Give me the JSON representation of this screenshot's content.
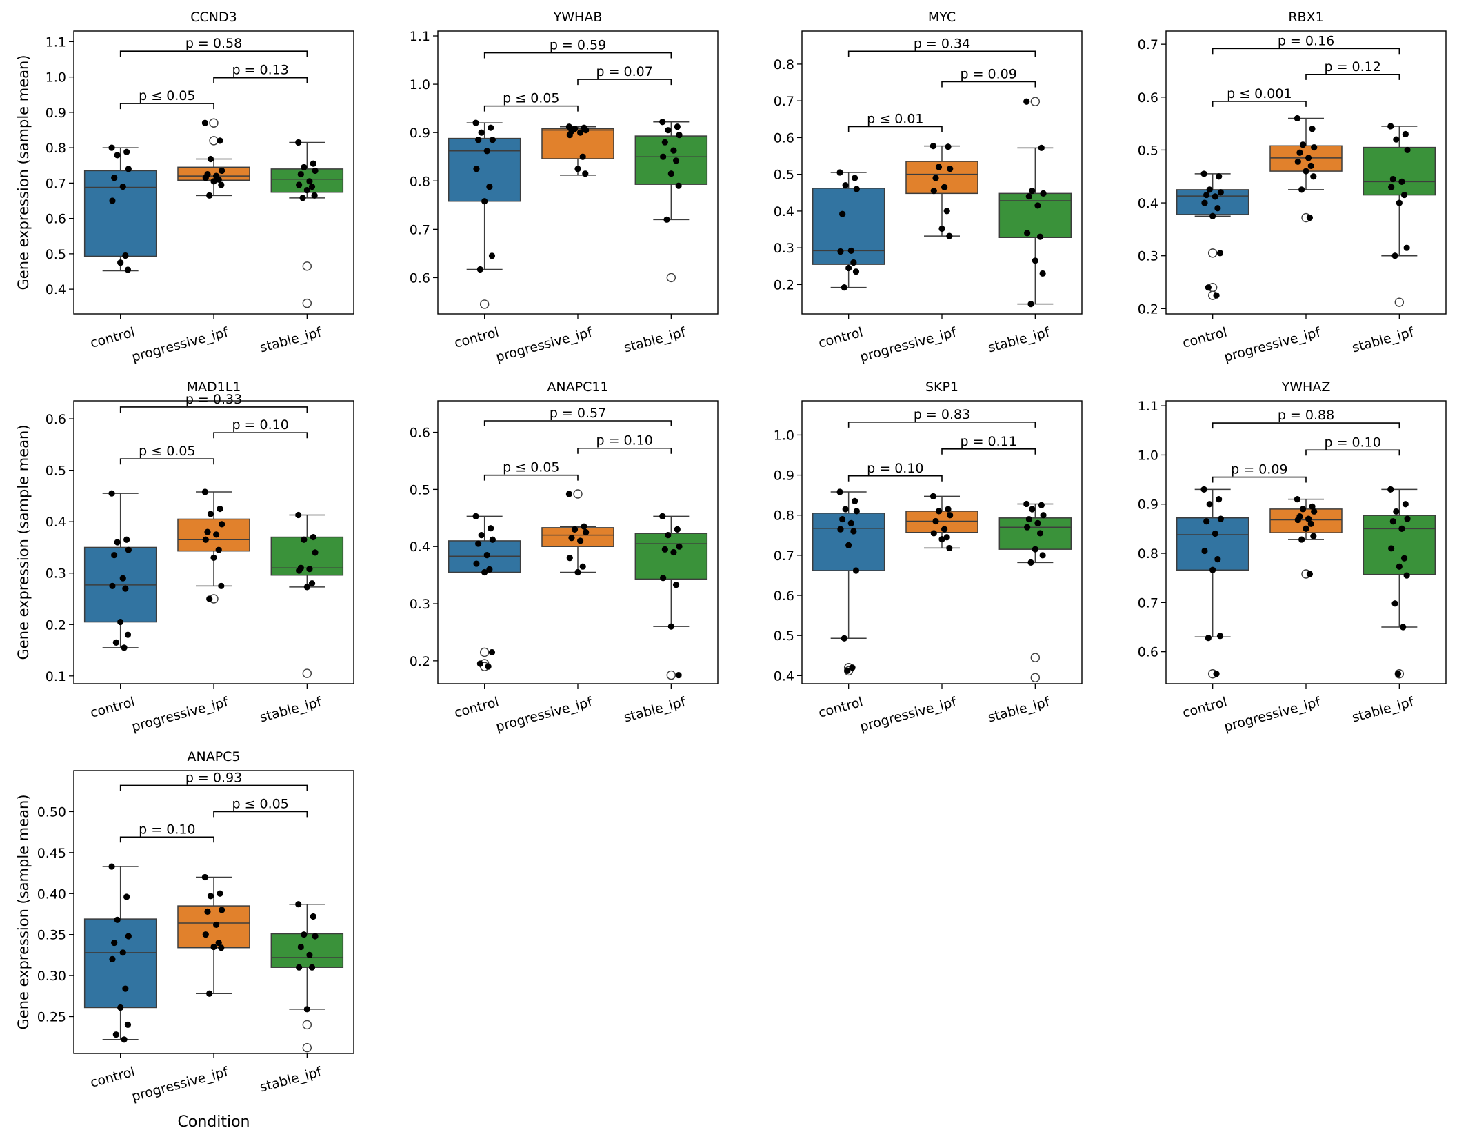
{
  "figure": {
    "ylabel": "Gene expression (sample mean)",
    "xlabel": "Condition",
    "categories": [
      "control",
      "progressive_ipf",
      "stable_ipf"
    ],
    "colors": [
      "#3274a1",
      "#e1812c",
      "#3a923a"
    ]
  },
  "chart_data": [
    {
      "type": "box",
      "title": "CCND3",
      "ylim": [
        0.33,
        1.13
      ],
      "yticks": [
        "0.4",
        "0.5",
        "0.6",
        "0.7",
        "0.8",
        "0.9",
        "1.0",
        "1.1"
      ],
      "boxes": [
        {
          "whislo": 0.452,
          "q1": 0.493,
          "med": 0.688,
          "q3": 0.735,
          "whishi": 0.8
        },
        {
          "whislo": 0.665,
          "q1": 0.708,
          "med": 0.72,
          "q3": 0.745,
          "whishi": 0.768
        },
        {
          "whislo": 0.658,
          "q1": 0.674,
          "med": 0.711,
          "q3": 0.74,
          "whishi": 0.815
        }
      ],
      "points": [
        [
          0.8,
          0.788,
          0.779,
          0.74,
          0.715,
          0.69,
          0.65,
          0.495,
          0.475,
          0.455
        ],
        [
          0.87,
          0.82,
          0.768,
          0.735,
          0.725,
          0.72,
          0.715,
          0.71,
          0.705,
          0.695,
          0.665
        ],
        [
          0.815,
          0.755,
          0.745,
          0.735,
          0.725,
          0.705,
          0.695,
          0.69,
          0.68,
          0.665,
          0.658
        ]
      ],
      "outliers": [
        [],
        [
          0.87,
          0.82
        ],
        [
          0.465,
          0.36
        ]
      ],
      "annotations": [
        {
          "from": 0,
          "to": 1,
          "y": 0.925,
          "label": "p ≤ 0.05"
        },
        {
          "from": 1,
          "to": 2,
          "y": 0.998,
          "label": "p = 0.13"
        },
        {
          "from": 0,
          "to": 2,
          "y": 1.073,
          "label": "p = 0.58"
        }
      ]
    },
    {
      "type": "box",
      "title": "YWHAB",
      "ylim": [
        0.525,
        1.11
      ],
      "yticks": [
        "0.6",
        "0.7",
        "0.8",
        "0.9",
        "1.0",
        "1.1"
      ],
      "boxes": [
        {
          "whislo": 0.617,
          "q1": 0.758,
          "med": 0.862,
          "q3": 0.888,
          "whishi": 0.92
        },
        {
          "whislo": 0.812,
          "q1": 0.846,
          "med": 0.905,
          "q3": 0.908,
          "whishi": 0.912
        },
        {
          "whislo": 0.72,
          "q1": 0.793,
          "med": 0.85,
          "q3": 0.893,
          "whishi": 0.922
        }
      ],
      "points": [
        [
          0.92,
          0.91,
          0.9,
          0.885,
          0.885,
          0.862,
          0.825,
          0.788,
          0.758,
          0.645,
          0.617
        ],
        [
          0.912,
          0.91,
          0.908,
          0.905,
          0.903,
          0.9,
          0.895,
          0.85,
          0.825,
          0.815
        ],
        [
          0.922,
          0.912,
          0.905,
          0.895,
          0.88,
          0.863,
          0.85,
          0.842,
          0.815,
          0.79,
          0.72
        ]
      ],
      "outliers": [
        [
          0.545
        ],
        [],
        [
          0.6
        ]
      ],
      "annotations": [
        {
          "from": 0,
          "to": 1,
          "y": 0.955,
          "label": "p ≤ 0.05"
        },
        {
          "from": 1,
          "to": 2,
          "y": 1.01,
          "label": "p = 0.07"
        },
        {
          "from": 0,
          "to": 2,
          "y": 1.065,
          "label": "p = 0.59"
        }
      ]
    },
    {
      "type": "box",
      "title": "MYC",
      "ylim": [
        0.12,
        0.89
      ],
      "yticks": [
        "0.2",
        "0.3",
        "0.4",
        "0.5",
        "0.6",
        "0.7",
        "0.8"
      ],
      "boxes": [
        {
          "whislo": 0.192,
          "q1": 0.255,
          "med": 0.292,
          "q3": 0.462,
          "whishi": 0.505
        },
        {
          "whislo": 0.332,
          "q1": 0.448,
          "med": 0.5,
          "q3": 0.535,
          "whishi": 0.577
        },
        {
          "whislo": 0.147,
          "q1": 0.328,
          "med": 0.428,
          "q3": 0.448,
          "whishi": 0.572
        }
      ],
      "points": [
        [
          0.505,
          0.49,
          0.47,
          0.46,
          0.392,
          0.292,
          0.29,
          0.26,
          0.245,
          0.235,
          0.192
        ],
        [
          0.577,
          0.575,
          0.52,
          0.515,
          0.49,
          0.465,
          0.455,
          0.4,
          0.352,
          0.332
        ],
        [
          0.698,
          0.572,
          0.455,
          0.448,
          0.44,
          0.415,
          0.34,
          0.33,
          0.265,
          0.23,
          0.147
        ]
      ],
      "outliers": [
        [],
        [],
        [
          0.698
        ]
      ],
      "annotations": [
        {
          "from": 0,
          "to": 1,
          "y": 0.63,
          "label": "p ≤ 0.01"
        },
        {
          "from": 1,
          "to": 2,
          "y": 0.752,
          "label": "p = 0.09"
        },
        {
          "from": 0,
          "to": 2,
          "y": 0.835,
          "label": "p = 0.34"
        }
      ]
    },
    {
      "type": "box",
      "title": "RBX1",
      "ylim": [
        0.19,
        0.725
      ],
      "yticks": [
        "0.2",
        "0.3",
        "0.4",
        "0.5",
        "0.6",
        "0.7"
      ],
      "boxes": [
        {
          "whislo": 0.375,
          "q1": 0.378,
          "med": 0.413,
          "q3": 0.425,
          "whishi": 0.455
        },
        {
          "whislo": 0.425,
          "q1": 0.46,
          "med": 0.485,
          "q3": 0.508,
          "whishi": 0.56
        },
        {
          "whislo": 0.3,
          "q1": 0.415,
          "med": 0.44,
          "q3": 0.505,
          "whishi": 0.545
        }
      ],
      "points": [
        [
          0.455,
          0.45,
          0.425,
          0.42,
          0.415,
          0.412,
          0.4,
          0.39,
          0.375,
          0.305,
          0.24,
          0.225
        ],
        [
          0.56,
          0.54,
          0.51,
          0.505,
          0.495,
          0.485,
          0.478,
          0.47,
          0.46,
          0.45,
          0.425,
          0.372
        ],
        [
          0.545,
          0.53,
          0.52,
          0.5,
          0.445,
          0.44,
          0.43,
          0.415,
          0.4,
          0.315,
          0.3
        ]
      ],
      "outliers": [
        [
          0.305,
          0.24,
          0.225
        ],
        [
          0.372
        ],
        [
          0.212
        ]
      ],
      "annotations": [
        {
          "from": 0,
          "to": 1,
          "y": 0.592,
          "label": "p ≤ 0.001"
        },
        {
          "from": 1,
          "to": 2,
          "y": 0.643,
          "label": "p = 0.12"
        },
        {
          "from": 0,
          "to": 2,
          "y": 0.692,
          "label": "p = 0.16"
        }
      ]
    },
    {
      "type": "box",
      "title": "MAD1L1",
      "ylim": [
        0.085,
        0.635
      ],
      "yticks": [
        "0.1",
        "0.2",
        "0.3",
        "0.4",
        "0.5",
        "0.6"
      ],
      "boxes": [
        {
          "whislo": 0.155,
          "q1": 0.205,
          "med": 0.277,
          "q3": 0.35,
          "whishi": 0.455
        },
        {
          "whislo": 0.275,
          "q1": 0.343,
          "med": 0.365,
          "q3": 0.405,
          "whishi": 0.458
        },
        {
          "whislo": 0.273,
          "q1": 0.296,
          "med": 0.31,
          "q3": 0.37,
          "whishi": 0.413
        }
      ],
      "points": [
        [
          0.455,
          0.365,
          0.36,
          0.345,
          0.335,
          0.29,
          0.275,
          0.27,
          0.205,
          0.18,
          0.165,
          0.155
        ],
        [
          0.458,
          0.425,
          0.415,
          0.395,
          0.38,
          0.375,
          0.365,
          0.345,
          0.33,
          0.275,
          0.25
        ],
        [
          0.413,
          0.37,
          0.365,
          0.34,
          0.31,
          0.308,
          0.305,
          0.28,
          0.273
        ]
      ],
      "outliers": [
        [],
        [
          0.25
        ],
        [
          0.105
        ]
      ],
      "annotations": [
        {
          "from": 0,
          "to": 1,
          "y": 0.522,
          "label": "p ≤ 0.05"
        },
        {
          "from": 1,
          "to": 2,
          "y": 0.573,
          "label": "p = 0.10"
        },
        {
          "from": 0,
          "to": 2,
          "y": 0.623,
          "label": "p = 0.33"
        }
      ]
    },
    {
      "type": "box",
      "title": "ANAPC11",
      "ylim": [
        0.16,
        0.655
      ],
      "yticks": [
        "0.2",
        "0.3",
        "0.4",
        "0.5",
        "0.6"
      ],
      "boxes": [
        {
          "whislo": 0.355,
          "q1": 0.355,
          "med": 0.383,
          "q3": 0.41,
          "whishi": 0.453
        },
        {
          "whislo": 0.355,
          "q1": 0.4,
          "med": 0.42,
          "q3": 0.433,
          "whishi": 0.435
        },
        {
          "whislo": 0.26,
          "q1": 0.343,
          "med": 0.405,
          "q3": 0.423,
          "whishi": 0.453
        }
      ],
      "points": [
        [
          0.453,
          0.432,
          0.42,
          0.412,
          0.405,
          0.385,
          0.37,
          0.36,
          0.355,
          0.215,
          0.195,
          0.19
        ],
        [
          0.492,
          0.435,
          0.43,
          0.425,
          0.415,
          0.41,
          0.38,
          0.365,
          0.355
        ],
        [
          0.453,
          0.43,
          0.42,
          0.4,
          0.395,
          0.39,
          0.345,
          0.333,
          0.26,
          0.175
        ]
      ],
      "outliers": [
        [
          0.215,
          0.195,
          0.19
        ],
        [
          0.492
        ],
        [
          0.175
        ]
      ],
      "annotations": [
        {
          "from": 0,
          "to": 1,
          "y": 0.525,
          "label": "p ≤ 0.05"
        },
        {
          "from": 1,
          "to": 2,
          "y": 0.572,
          "label": "p = 0.10"
        },
        {
          "from": 0,
          "to": 2,
          "y": 0.62,
          "label": "p = 0.57"
        }
      ]
    },
    {
      "type": "box",
      "title": "SKP1",
      "ylim": [
        0.38,
        1.085
      ],
      "yticks": [
        "0.4",
        "0.5",
        "0.6",
        "0.7",
        "0.8",
        "0.9",
        "1.0"
      ],
      "boxes": [
        {
          "whislo": 0.493,
          "q1": 0.662,
          "med": 0.767,
          "q3": 0.805,
          "whishi": 0.858
        },
        {
          "whislo": 0.718,
          "q1": 0.757,
          "med": 0.785,
          "q3": 0.81,
          "whishi": 0.847
        },
        {
          "whislo": 0.682,
          "q1": 0.715,
          "med": 0.77,
          "q3": 0.793,
          "whishi": 0.828
        }
      ],
      "points": [
        [
          0.858,
          0.835,
          0.815,
          0.81,
          0.79,
          0.78,
          0.765,
          0.76,
          0.725,
          0.662,
          0.493,
          0.42,
          0.412
        ],
        [
          0.847,
          0.815,
          0.81,
          0.8,
          0.785,
          0.765,
          0.755,
          0.745,
          0.74,
          0.718
        ],
        [
          0.828,
          0.825,
          0.815,
          0.8,
          0.79,
          0.78,
          0.77,
          0.755,
          0.715,
          0.7,
          0.682
        ]
      ],
      "outliers": [
        [
          0.42,
          0.412
        ],
        [],
        [
          0.445,
          0.395
        ]
      ],
      "annotations": [
        {
          "from": 0,
          "to": 1,
          "y": 0.898,
          "label": "p = 0.10"
        },
        {
          "from": 1,
          "to": 2,
          "y": 0.965,
          "label": "p = 0.11"
        },
        {
          "from": 0,
          "to": 2,
          "y": 1.032,
          "label": "p = 0.83"
        }
      ]
    },
    {
      "type": "box",
      "title": "YWHAZ",
      "ylim": [
        0.535,
        1.11
      ],
      "yticks": [
        "0.6",
        "0.7",
        "0.8",
        "0.9",
        "1.0",
        "1.1"
      ],
      "boxes": [
        {
          "whislo": 0.63,
          "q1": 0.766,
          "med": 0.838,
          "q3": 0.872,
          "whishi": 0.93
        },
        {
          "whislo": 0.828,
          "q1": 0.842,
          "med": 0.868,
          "q3": 0.89,
          "whishi": 0.91
        },
        {
          "whislo": 0.65,
          "q1": 0.757,
          "med": 0.85,
          "q3": 0.877,
          "whishi": 0.93
        }
      ],
      "points": [
        [
          0.93,
          0.91,
          0.9,
          0.87,
          0.865,
          0.84,
          0.805,
          0.788,
          0.766,
          0.632,
          0.628,
          0.555
        ],
        [
          0.91,
          0.895,
          0.89,
          0.885,
          0.875,
          0.87,
          0.868,
          0.86,
          0.85,
          0.835,
          0.828,
          0.758
        ],
        [
          0.93,
          0.9,
          0.885,
          0.87,
          0.865,
          0.85,
          0.81,
          0.79,
          0.773,
          0.755,
          0.698,
          0.65,
          0.555
        ]
      ],
      "outliers": [
        [
          0.555
        ],
        [
          0.758
        ],
        [
          0.555
        ]
      ],
      "annotations": [
        {
          "from": 0,
          "to": 1,
          "y": 0.955,
          "label": "p = 0.09"
        },
        {
          "from": 1,
          "to": 2,
          "y": 1.01,
          "label": "p = 0.10"
        },
        {
          "from": 0,
          "to": 2,
          "y": 1.065,
          "label": "p = 0.88"
        }
      ]
    },
    {
      "type": "box",
      "title": "ANAPC5",
      "ylim": [
        0.205,
        0.55
      ],
      "yticks": [
        "0.25",
        "0.30",
        "0.35",
        "0.40",
        "0.45",
        "0.50"
      ],
      "boxes": [
        {
          "whislo": 0.222,
          "q1": 0.261,
          "med": 0.328,
          "q3": 0.369,
          "whishi": 0.433
        },
        {
          "whislo": 0.278,
          "q1": 0.334,
          "med": 0.364,
          "q3": 0.385,
          "whishi": 0.42
        },
        {
          "whislo": 0.259,
          "q1": 0.31,
          "med": 0.322,
          "q3": 0.351,
          "whishi": 0.387
        }
      ],
      "points": [
        [
          0.433,
          0.396,
          0.368,
          0.348,
          0.34,
          0.328,
          0.32,
          0.284,
          0.261,
          0.24,
          0.228,
          0.222
        ],
        [
          0.42,
          0.4,
          0.397,
          0.38,
          0.378,
          0.362,
          0.35,
          0.34,
          0.335,
          0.334,
          0.278
        ],
        [
          0.387,
          0.372,
          0.35,
          0.348,
          0.335,
          0.325,
          0.31,
          0.31,
          0.259
        ]
      ],
      "outliers": [
        [],
        [],
        [
          0.24,
          0.212
        ]
      ],
      "annotations": [
        {
          "from": 0,
          "to": 1,
          "y": 0.469,
          "label": "p = 0.10"
        },
        {
          "from": 1,
          "to": 2,
          "y": 0.5,
          "label": "p ≤ 0.05"
        },
        {
          "from": 0,
          "to": 2,
          "y": 0.532,
          "label": "p = 0.93"
        }
      ]
    }
  ]
}
